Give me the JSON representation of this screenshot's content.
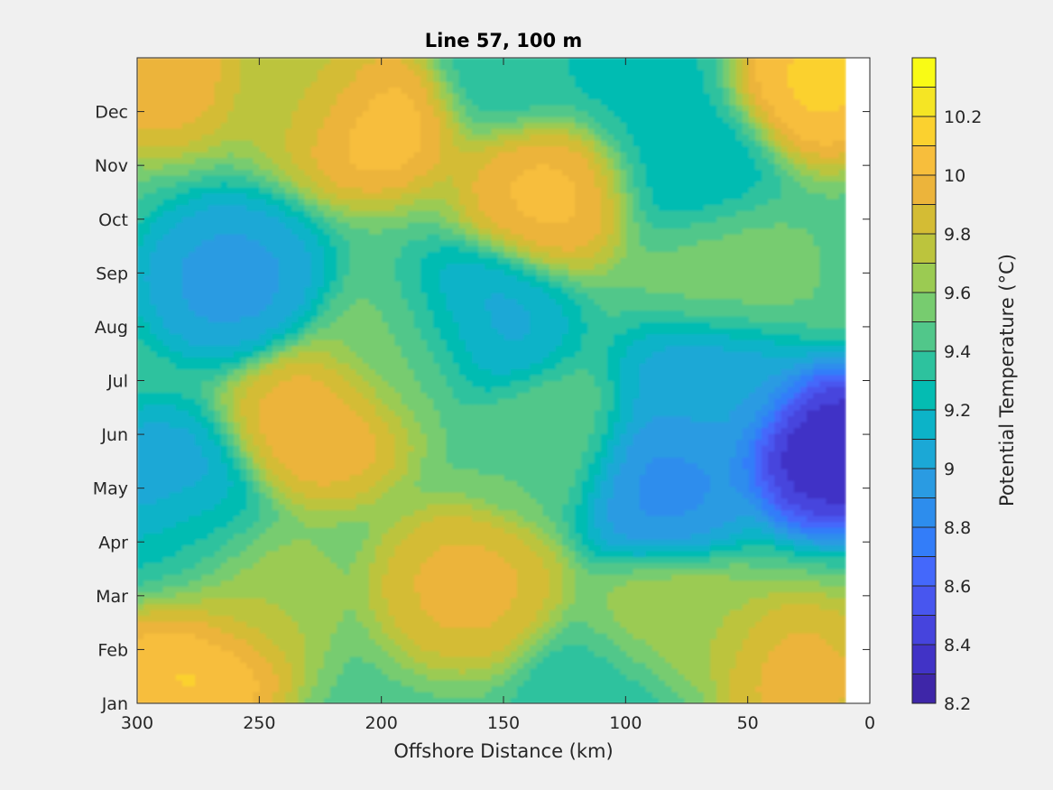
{
  "chart_data": {
    "type": "heatmap",
    "title": "Line 57, 100 m",
    "xlabel": "Offshore Distance (km)",
    "ylabel": "",
    "xlim": [
      300,
      0
    ],
    "x_direction": "reversed",
    "xticks": [
      300,
      250,
      200,
      150,
      100,
      50,
      0
    ],
    "xtick_labels": [
      "300",
      "250",
      "200",
      "150",
      "100",
      "50",
      "0"
    ],
    "yticks": [
      1,
      2,
      3,
      4,
      5,
      6,
      7,
      8,
      9,
      10,
      11,
      12
    ],
    "ytick_labels": [
      "Jan",
      "Feb",
      "Mar",
      "Apr",
      "May",
      "Jun",
      "Jul",
      "Aug",
      "Sep",
      "Oct",
      "Nov",
      "Dec"
    ],
    "ylim": [
      1,
      13
    ],
    "data_coverage_x": [
      300,
      10
    ],
    "colorbar": {
      "label": "Potential Temperature (°C)",
      "range": [
        8.2,
        10.4
      ],
      "contour_interval": 0.1,
      "tick_values": [
        8.2,
        8.4,
        8.6,
        8.8,
        9.0,
        9.2,
        9.4,
        9.6,
        9.8,
        10.0,
        10.2
      ],
      "tick_labels": [
        "8.2",
        "8.4",
        "8.6",
        "8.8",
        "9",
        "9.2",
        "9.4",
        "9.6",
        "9.8",
        "10",
        "10.2"
      ],
      "colormap": "parula",
      "placement": "right"
    },
    "features": [
      {
        "x": 15,
        "y": 5.7,
        "value": 8.25
      },
      {
        "x": 85,
        "y": 5.1,
        "value": 8.85
      },
      {
        "x": 262,
        "y": 8.9,
        "value": 8.95
      },
      {
        "x": 160,
        "y": 8.0,
        "value": 9.05
      },
      {
        "x": 290,
        "y": 5.0,
        "value": 9.0
      },
      {
        "x": 225,
        "y": 6.2,
        "value": 10.0
      },
      {
        "x": 135,
        "y": 5.8,
        "value": 9.5
      },
      {
        "x": 60,
        "y": 9.0,
        "value": 9.55
      },
      {
        "x": 205,
        "y": 11.9,
        "value": 10.1
      },
      {
        "x": 130,
        "y": 10.6,
        "value": 10.05
      },
      {
        "x": 20,
        "y": 12.6,
        "value": 10.15
      },
      {
        "x": 275,
        "y": 1.8,
        "value": 10.15
      },
      {
        "x": 165,
        "y": 3.2,
        "value": 9.95
      },
      {
        "x": 290,
        "y": 12.8,
        "value": 10.0
      },
      {
        "x": 75,
        "y": 11.0,
        "value": 9.2
      },
      {
        "x": 95,
        "y": 12.5,
        "value": 9.25
      },
      {
        "x": 145,
        "y": 12.9,
        "value": 9.3
      },
      {
        "x": 230,
        "y": 12.5,
        "value": 9.75
      },
      {
        "x": 105,
        "y": 1.1,
        "value": 9.3
      },
      {
        "x": 30,
        "y": 1.5,
        "value": 9.95
      },
      {
        "x": 280,
        "y": 4.0,
        "value": 9.3
      },
      {
        "x": 65,
        "y": 7.0,
        "value": 9.0
      },
      {
        "x": 80,
        "y": 2.3,
        "value": 9.7
      },
      {
        "x": 190,
        "y": 7.5,
        "value": 9.55
      },
      {
        "x": 255,
        "y": 3.0,
        "value": 9.7
      }
    ],
    "background_value": 9.45
  }
}
